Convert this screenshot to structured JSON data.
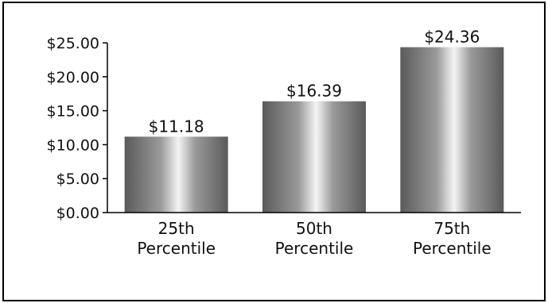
{
  "chart_data": {
    "type": "bar",
    "categories": [
      [
        "25th",
        "Percentile"
      ],
      [
        "50th",
        "Percentile"
      ],
      [
        "75th",
        "Percentile"
      ]
    ],
    "values": [
      11.18,
      16.39,
      24.36
    ],
    "value_labels": [
      "$11.18",
      "$16.39",
      "$24.36"
    ],
    "ylim": [
      0,
      25
    ],
    "yticks": [
      0,
      5,
      10,
      15,
      20,
      25
    ],
    "ytick_labels": [
      "$0.00",
      "$5.00",
      "$10.00",
      "$15.00",
      "$20.00",
      "$25.00"
    ],
    "grid": false,
    "bar_colors": {
      "edge": "#5a5a5a",
      "mid": "#9a9a9a",
      "highlight": "#f4f4f4"
    },
    "axis_color": "#000000"
  }
}
